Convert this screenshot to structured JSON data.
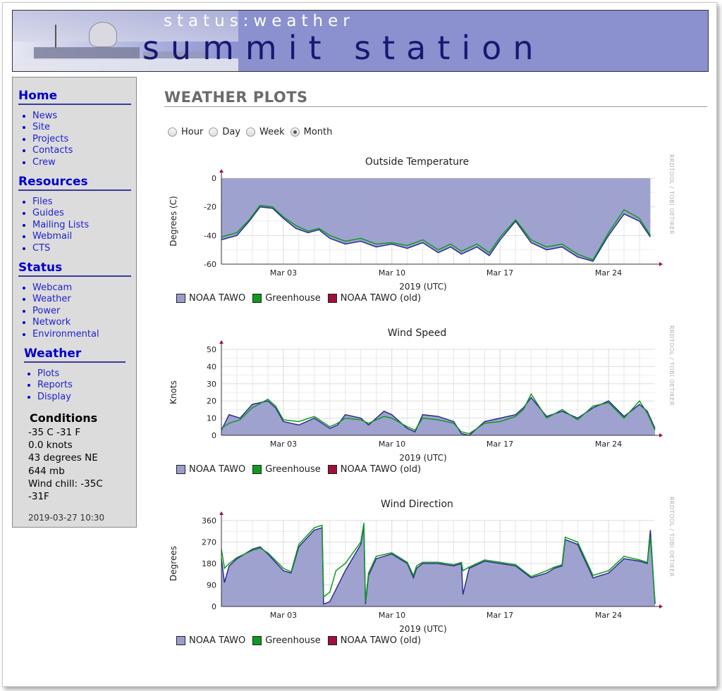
{
  "header": {
    "subtitle": "status:weather",
    "title": "summit station"
  },
  "sidebar": {
    "sections": [
      {
        "title": "Home",
        "items": [
          "News",
          "Site",
          "Projects",
          "Contacts",
          "Crew"
        ]
      },
      {
        "title": "Resources",
        "items": [
          "Files",
          "Guides",
          "Mailing Lists",
          "Webmail",
          "CTS"
        ]
      },
      {
        "title": "Status",
        "items": [
          "Webcam",
          "Weather",
          "Power",
          "Network",
          "Environmental"
        ]
      },
      {
        "title": "Weather",
        "items": [
          "Plots",
          "Reports",
          "Display"
        ]
      }
    ],
    "conditions": {
      "title": "Conditions",
      "lines": [
        "-35 C -31 F",
        "0.0 knots",
        "43 degrees NE",
        "644 mb",
        "Wind chill: -35C",
        "-31F"
      ],
      "timestamp": "2019-03-27 10:30"
    }
  },
  "main": {
    "title": "WEATHER PLOTS",
    "periods": [
      {
        "label": "Hour",
        "selected": false
      },
      {
        "label": "Day",
        "selected": false
      },
      {
        "label": "Week",
        "selected": false
      },
      {
        "label": "Month",
        "selected": true
      }
    ]
  },
  "legend": [
    {
      "label": "NOAA TAWO",
      "color": "#9a9dcc"
    },
    {
      "label": "Greenhouse",
      "color": "#0f9a1f"
    },
    {
      "label": "NOAA TAWO (old)",
      "color": "#a0103a"
    }
  ],
  "chart_watermark": "RRDTOOL / TOBI OETIKER",
  "chart_data": [
    {
      "type": "area",
      "title": "Outside Temperature",
      "xlabel": "2019 (UTC)",
      "ylabel": "Degrees (C)",
      "x_ticks": [
        "Mar 03",
        "Mar 10",
        "Mar 17",
        "Mar 24"
      ],
      "y_ticks": [
        0,
        -20,
        -40,
        -60
      ],
      "ylim": [
        -60,
        0
      ],
      "area_baseline": "top",
      "x_range_days": [
        0,
        28
      ],
      "series": [
        {
          "name": "NOAA TAWO",
          "values": [
            [
              0,
              -43
            ],
            [
              1,
              -40
            ],
            [
              1.8,
              -30
            ],
            [
              2.5,
              -20
            ],
            [
              3.3,
              -21
            ],
            [
              4,
              -28
            ],
            [
              4.8,
              -35
            ],
            [
              5.6,
              -38
            ],
            [
              6.3,
              -36
            ],
            [
              7,
              -42
            ],
            [
              8,
              -46
            ],
            [
              9,
              -44
            ],
            [
              10,
              -48
            ],
            [
              11,
              -46
            ],
            [
              12,
              -49
            ],
            [
              13,
              -45
            ],
            [
              14,
              -52
            ],
            [
              14.8,
              -48
            ],
            [
              15.5,
              -53
            ],
            [
              16.5,
              -48
            ],
            [
              17.3,
              -54
            ],
            [
              18,
              -43
            ],
            [
              19,
              -30
            ],
            [
              20,
              -45
            ],
            [
              21,
              -50
            ],
            [
              22,
              -48
            ],
            [
              23,
              -55
            ],
            [
              24,
              -58
            ],
            [
              25,
              -40
            ],
            [
              26,
              -25
            ],
            [
              27,
              -30
            ],
            [
              27.7,
              -41
            ]
          ]
        },
        {
          "name": "Greenhouse",
          "values": [
            [
              0,
              -41
            ],
            [
              1,
              -38
            ],
            [
              1.8,
              -29
            ],
            [
              2.5,
              -19
            ],
            [
              3.3,
              -20
            ],
            [
              4,
              -27
            ],
            [
              4.8,
              -33
            ],
            [
              5.6,
              -37
            ],
            [
              6.3,
              -35
            ],
            [
              7,
              -40
            ],
            [
              8,
              -44
            ],
            [
              9,
              -42
            ],
            [
              10,
              -46
            ],
            [
              11,
              -45
            ],
            [
              12,
              -47
            ],
            [
              13,
              -43
            ],
            [
              14,
              -50
            ],
            [
              14.8,
              -46
            ],
            [
              15.5,
              -51
            ],
            [
              16.5,
              -46
            ],
            [
              17.3,
              -52
            ],
            [
              18,
              -41
            ],
            [
              19,
              -29
            ],
            [
              20,
              -43
            ],
            [
              21,
              -48
            ],
            [
              22,
              -46
            ],
            [
              23,
              -53
            ],
            [
              24,
              -57
            ],
            [
              25,
              -38
            ],
            [
              26,
              -22
            ],
            [
              27,
              -28
            ],
            [
              27.7,
              -40
            ]
          ]
        },
        {
          "name": "NOAA TAWO (old)",
          "values": []
        }
      ]
    },
    {
      "type": "area",
      "title": "Wind Speed",
      "xlabel": "2019 (UTC)",
      "ylabel": "Knots",
      "x_ticks": [
        "Mar 03",
        "Mar 10",
        "Mar 17",
        "Mar 24"
      ],
      "y_ticks": [
        0,
        10,
        20,
        30,
        40,
        50
      ],
      "ylim": [
        0,
        50
      ],
      "area_baseline": "bottom",
      "x_range_days": [
        0,
        28
      ],
      "series": [
        {
          "name": "NOAA TAWO",
          "values": [
            [
              0,
              3
            ],
            [
              0.5,
              12
            ],
            [
              1.2,
              10
            ],
            [
              2,
              18
            ],
            [
              3,
              20
            ],
            [
              3.5,
              16
            ],
            [
              4,
              8
            ],
            [
              5,
              6
            ],
            [
              6,
              10
            ],
            [
              7,
              4
            ],
            [
              7.5,
              6
            ],
            [
              8,
              12
            ],
            [
              9,
              10
            ],
            [
              9.5,
              6
            ],
            [
              10.5,
              14
            ],
            [
              11,
              12
            ],
            [
              12,
              4
            ],
            [
              12.5,
              2
            ],
            [
              13,
              12
            ],
            [
              14,
              11
            ],
            [
              15,
              8
            ],
            [
              15.5,
              1
            ],
            [
              16,
              0
            ],
            [
              17,
              8
            ],
            [
              18,
              10
            ],
            [
              19,
              12
            ],
            [
              19.5,
              16
            ],
            [
              20,
              22
            ],
            [
              21,
              11
            ],
            [
              22,
              14
            ],
            [
              23,
              10
            ],
            [
              24,
              16
            ],
            [
              25,
              20
            ],
            [
              26,
              11
            ],
            [
              27,
              18
            ],
            [
              27.5,
              14
            ],
            [
              28,
              4
            ]
          ]
        },
        {
          "name": "Greenhouse",
          "values": [
            [
              0,
              4
            ],
            [
              0.5,
              7
            ],
            [
              1.2,
              9
            ],
            [
              2,
              16
            ],
            [
              3,
              21
            ],
            [
              3.5,
              17
            ],
            [
              4,
              9
            ],
            [
              5,
              8
            ],
            [
              6,
              11
            ],
            [
              7,
              5
            ],
            [
              7.5,
              7
            ],
            [
              8,
              10
            ],
            [
              9,
              9
            ],
            [
              9.5,
              7
            ],
            [
              10.5,
              11
            ],
            [
              11,
              10
            ],
            [
              12,
              5
            ],
            [
              12.5,
              3
            ],
            [
              13,
              10
            ],
            [
              14,
              9
            ],
            [
              15,
              7
            ],
            [
              15.5,
              2
            ],
            [
              16,
              1
            ],
            [
              17,
              7
            ],
            [
              18,
              8
            ],
            [
              19,
              11
            ],
            [
              19.5,
              15
            ],
            [
              20,
              24
            ],
            [
              21,
              10
            ],
            [
              22,
              15
            ],
            [
              23,
              9
            ],
            [
              24,
              17
            ],
            [
              25,
              19
            ],
            [
              26,
              10
            ],
            [
              27,
              20
            ],
            [
              27.5,
              13
            ],
            [
              28,
              3
            ]
          ]
        },
        {
          "name": "NOAA TAWO (old)",
          "values": []
        }
      ]
    },
    {
      "type": "area",
      "title": "Wind Direction",
      "xlabel": "2019 (UTC)",
      "ylabel": "Degrees",
      "x_ticks": [
        "Mar 03",
        "Mar 10",
        "Mar 17",
        "Mar 24"
      ],
      "y_ticks": [
        0,
        90,
        180,
        270,
        360
      ],
      "ylim": [
        0,
        360
      ],
      "area_baseline": "bottom",
      "x_range_days": [
        0,
        28
      ],
      "series": [
        {
          "name": "NOAA TAWO",
          "values": [
            [
              0,
              200
            ],
            [
              0.2,
              100
            ],
            [
              0.5,
              170
            ],
            [
              1,
              200
            ],
            [
              2,
              240
            ],
            [
              2.5,
              250
            ],
            [
              3,
              220
            ],
            [
              4,
              150
            ],
            [
              4.5,
              140
            ],
            [
              5,
              250
            ],
            [
              6,
              320
            ],
            [
              6.5,
              330
            ],
            [
              6.6,
              10
            ],
            [
              7,
              20
            ],
            [
              8,
              150
            ],
            [
              9,
              260
            ],
            [
              9.2,
              340
            ],
            [
              9.3,
              10
            ],
            [
              9.5,
              130
            ],
            [
              10,
              200
            ],
            [
              11,
              220
            ],
            [
              11.5,
              200
            ],
            [
              12,
              180
            ],
            [
              12.4,
              120
            ],
            [
              12.6,
              160
            ],
            [
              13,
              180
            ],
            [
              14,
              180
            ],
            [
              15,
              170
            ],
            [
              15.5,
              180
            ],
            [
              15.6,
              50
            ],
            [
              16,
              160
            ],
            [
              17,
              190
            ],
            [
              18,
              180
            ],
            [
              19,
              170
            ],
            [
              20,
              120
            ],
            [
              21,
              140
            ],
            [
              21.5,
              160
            ],
            [
              22,
              170
            ],
            [
              22.2,
              280
            ],
            [
              23,
              260
            ],
            [
              24,
              120
            ],
            [
              25,
              140
            ],
            [
              26,
              200
            ],
            [
              27,
              190
            ],
            [
              27.5,
              180
            ],
            [
              27.7,
              320
            ],
            [
              28,
              10
            ]
          ]
        },
        {
          "name": "Greenhouse",
          "values": [
            [
              0,
              240
            ],
            [
              0.2,
              160
            ],
            [
              0.5,
              180
            ],
            [
              1,
              205
            ],
            [
              2,
              235
            ],
            [
              2.5,
              245
            ],
            [
              3,
              225
            ],
            [
              4,
              160
            ],
            [
              4.5,
              145
            ],
            [
              5,
              260
            ],
            [
              6,
              330
            ],
            [
              6.5,
              340
            ],
            [
              6.6,
              40
            ],
            [
              7,
              60
            ],
            [
              7.4,
              150
            ],
            [
              8,
              180
            ],
            [
              9,
              270
            ],
            [
              9.2,
              350
            ],
            [
              9.3,
              20
            ],
            [
              9.5,
              140
            ],
            [
              10,
              210
            ],
            [
              11,
              225
            ],
            [
              11.5,
              205
            ],
            [
              12,
              185
            ],
            [
              12.4,
              130
            ],
            [
              12.6,
              170
            ],
            [
              13,
              185
            ],
            [
              14,
              185
            ],
            [
              15,
              175
            ],
            [
              15.5,
              185
            ],
            [
              15.6,
              150
            ],
            [
              16,
              165
            ],
            [
              17,
              195
            ],
            [
              18,
              185
            ],
            [
              19,
              175
            ],
            [
              20,
              125
            ],
            [
              21,
              150
            ],
            [
              21.5,
              165
            ],
            [
              22,
              175
            ],
            [
              22.2,
              290
            ],
            [
              23,
              270
            ],
            [
              24,
              130
            ],
            [
              25,
              150
            ],
            [
              26,
              210
            ],
            [
              27,
              195
            ],
            [
              27.5,
              185
            ],
            [
              27.7,
              290
            ],
            [
              28,
              20
            ]
          ]
        },
        {
          "name": "NOAA TAWO (old)",
          "values": []
        }
      ]
    }
  ]
}
